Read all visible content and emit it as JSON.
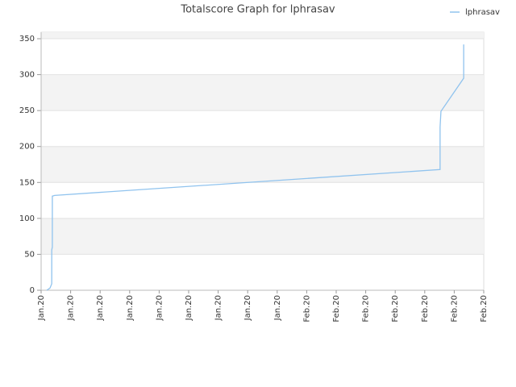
{
  "chart_data": {
    "type": "line",
    "title": "Totalscore Graph for lphrasav",
    "x": [
      0.19,
      0.3,
      0.36,
      0.36,
      0.38,
      0.38,
      0.46,
      13.52,
      13.52,
      13.55,
      14.32,
      14.32
    ],
    "series": [
      {
        "name": "lphrasav",
        "color": "#90c3ee",
        "values": [
          0,
          3,
          9,
          56,
          60,
          131,
          132,
          168,
          227,
          249,
          295,
          342
        ]
      }
    ],
    "xlim": [
      0,
      15
    ],
    "xticks": [
      {
        "value": 0,
        "label": "Jan.20"
      },
      {
        "value": 1,
        "label": "Jan.20"
      },
      {
        "value": 2,
        "label": "Jan.20"
      },
      {
        "value": 3,
        "label": "Jan.20"
      },
      {
        "value": 4,
        "label": "Jan.20"
      },
      {
        "value": 5,
        "label": "Jan.20"
      },
      {
        "value": 6,
        "label": "Jan.20"
      },
      {
        "value": 7,
        "label": "Jan.20"
      },
      {
        "value": 8,
        "label": "Jan.20"
      },
      {
        "value": 9,
        "label": "Feb.20"
      },
      {
        "value": 10,
        "label": "Feb.20"
      },
      {
        "value": 11,
        "label": "Feb.20"
      },
      {
        "value": 12,
        "label": "Feb.20"
      },
      {
        "value": 13,
        "label": "Feb.20"
      },
      {
        "value": 14,
        "label": "Feb.20"
      },
      {
        "value": 15,
        "label": "Feb.20"
      }
    ],
    "ylim": [
      0,
      359
    ],
    "yticks": [
      0,
      50,
      100,
      150,
      200,
      250,
      300,
      350
    ],
    "grid": true,
    "legend": "top-right"
  }
}
